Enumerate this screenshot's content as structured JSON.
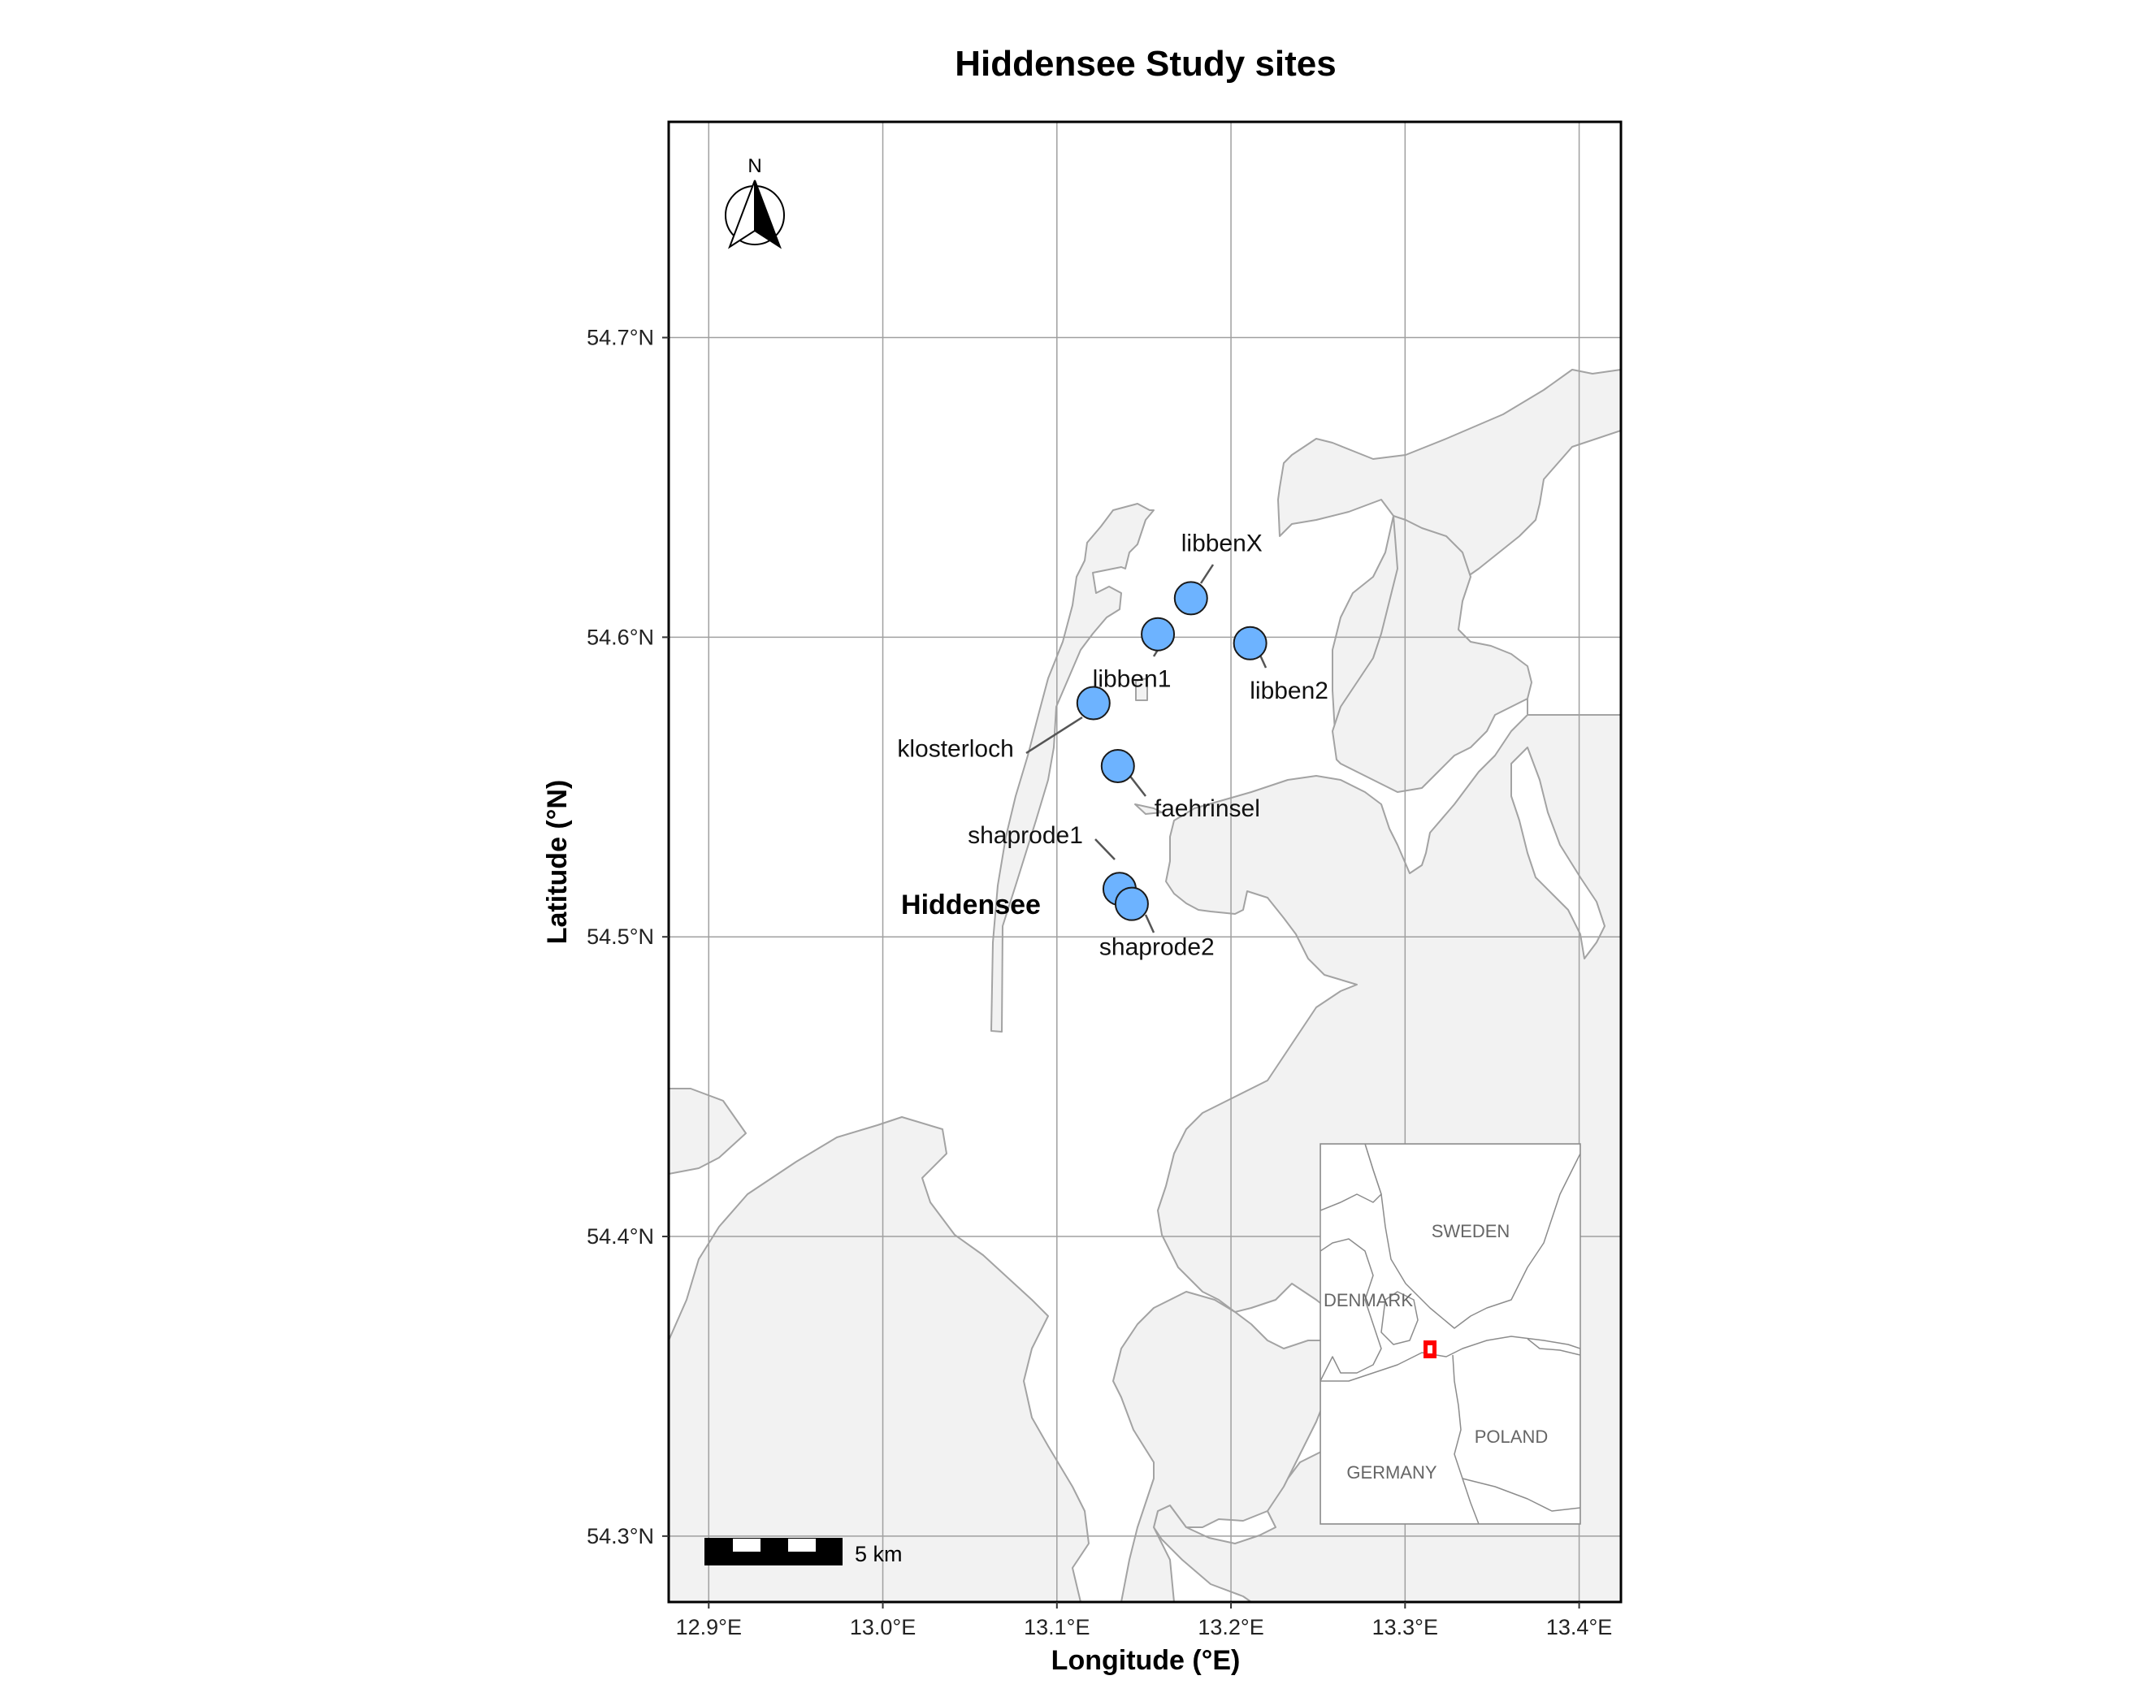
{
  "title": "Hiddensee Study sites",
  "x_axis_title": "Longitude (°E)",
  "y_axis_title": "Latitude (°N)",
  "x_ticks": [
    {
      "value": 12.9,
      "label": "12.9°E"
    },
    {
      "value": 13.0,
      "label": "13.0°E"
    },
    {
      "value": 13.1,
      "label": "13.1°E"
    },
    {
      "value": 13.2,
      "label": "13.2°E"
    },
    {
      "value": 13.3,
      "label": "13.3°E"
    },
    {
      "value": 13.4,
      "label": "13.4°E"
    }
  ],
  "y_ticks": [
    {
      "value": 54.3,
      "label": "54.3°N"
    },
    {
      "value": 54.4,
      "label": "54.4°N"
    },
    {
      "value": 54.5,
      "label": "54.5°N"
    },
    {
      "value": 54.6,
      "label": "54.6°N"
    },
    {
      "value": 54.7,
      "label": "54.7°N"
    }
  ],
  "x_range": [
    12.877,
    13.424
  ],
  "y_range": [
    54.278,
    54.772
  ],
  "grid": true,
  "north_arrow": {
    "label": "N",
    "placement": "top-left"
  },
  "scale_bar": {
    "label": "5 km",
    "placement": "bottom-left"
  },
  "place_label": "Hiddensee",
  "sites": [
    {
      "name": "libbenX",
      "lon": 13.177,
      "lat": 54.613
    },
    {
      "name": "libben1",
      "lon": 13.158,
      "lat": 54.601
    },
    {
      "name": "libben2",
      "lon": 13.211,
      "lat": 54.598
    },
    {
      "name": "klosterloch",
      "lon": 13.121,
      "lat": 54.578
    },
    {
      "name": "faehrinsel",
      "lon": 13.135,
      "lat": 54.557
    },
    {
      "name": "shaprode1",
      "lon": 13.136,
      "lat": 54.516
    },
    {
      "name": "shaprode2",
      "lon": 13.143,
      "lat": 54.511
    }
  ],
  "inset": {
    "placement": "bottom-right",
    "countries": [
      "SWEDEN",
      "DENMARK",
      "POLAND",
      "GERMANY"
    ]
  },
  "colors": {
    "land": "#f2f2f2",
    "coast": "#a3a3a3",
    "sea": "#ffffff",
    "grid": "#a0a0a0",
    "site_fill": "#6db3ff",
    "site_stroke": "#1a1a1a",
    "inset_highlight": "#ff0000"
  }
}
